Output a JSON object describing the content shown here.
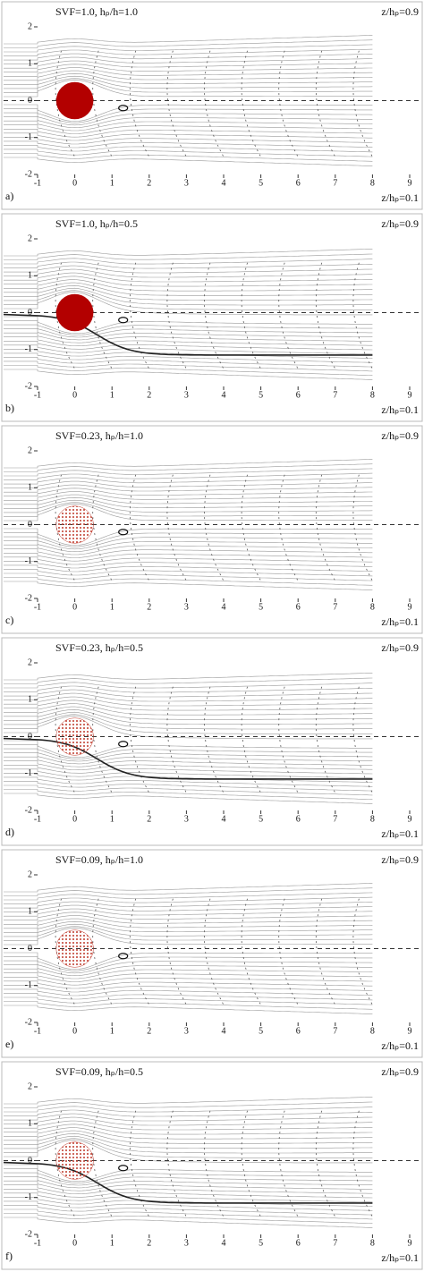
{
  "chart_data": [
    {
      "type": "streamline",
      "panel": "a)",
      "title": "SVF=1.0, hₚ/h=1.0",
      "top_label": "z/hₚ=0.9",
      "bottom_label": "z/hₚ=0.1",
      "xlim": [
        -1,
        9
      ],
      "ylim": [
        -2,
        2
      ],
      "xticks": [
        -1,
        0,
        1,
        2,
        3,
        4,
        5,
        6,
        7,
        8,
        9
      ],
      "yticks": [
        -2,
        -1,
        0,
        1,
        2
      ],
      "patch_fill": "solid",
      "patch_color": "#b30000"
    },
    {
      "type": "streamline",
      "panel": "b)",
      "title": "SVF=1.0, hₚ/h=0.5",
      "top_label": "z/hₚ=0.9",
      "bottom_label": "z/hₚ=0.1",
      "xlim": [
        -1,
        9
      ],
      "ylim": [
        -2,
        2
      ],
      "xticks": [
        -1,
        0,
        1,
        2,
        3,
        4,
        5,
        6,
        7,
        8,
        9
      ],
      "yticks": [
        -2,
        -1,
        0,
        1,
        2
      ],
      "patch_fill": "solid",
      "patch_color": "#b30000"
    },
    {
      "type": "streamline",
      "panel": "c)",
      "title": "SVF=0.23, hₚ/h=1.0",
      "top_label": "z/hₚ=0.9",
      "bottom_label": "z/hₚ=0.1",
      "xlim": [
        -1,
        9
      ],
      "ylim": [
        -2,
        2
      ],
      "xticks": [
        -1,
        0,
        1,
        2,
        3,
        4,
        5,
        6,
        7,
        8,
        9
      ],
      "yticks": [
        -2,
        -1,
        0,
        1,
        2
      ],
      "patch_fill": "dotted",
      "patch_color": "#c0392b"
    },
    {
      "type": "streamline",
      "panel": "d)",
      "title": "SVF=0.23, hₚ/h=0.5",
      "top_label": "z/hₚ=0.9",
      "bottom_label": "z/hₚ=0.1",
      "xlim": [
        -1,
        9
      ],
      "ylim": [
        -2,
        2
      ],
      "xticks": [
        -1,
        0,
        1,
        2,
        3,
        4,
        5,
        6,
        7,
        8,
        9
      ],
      "yticks": [
        -2,
        -1,
        0,
        1,
        2
      ],
      "patch_fill": "dotted",
      "patch_color": "#c0392b"
    },
    {
      "type": "streamline",
      "panel": "e)",
      "title": "SVF=0.09, hₚ/h=1.0",
      "top_label": "z/hₚ=0.9",
      "bottom_label": "z/hₚ=0.1",
      "xlim": [
        -1,
        9
      ],
      "ylim": [
        -2,
        2
      ],
      "xticks": [
        -1,
        0,
        1,
        2,
        3,
        4,
        5,
        6,
        7,
        8,
        9
      ],
      "yticks": [
        -2,
        -1,
        0,
        1,
        2
      ],
      "patch_fill": "dotted",
      "patch_color": "#c0392b"
    },
    {
      "type": "streamline",
      "panel": "f)",
      "title": "SVF=0.09, hₚ/h=0.5",
      "top_label": "z/hₚ=0.9",
      "bottom_label": "z/hₚ=0.1",
      "xlim": [
        -1,
        9
      ],
      "ylim": [
        -2,
        2
      ],
      "xticks": [
        -1,
        0,
        1,
        2,
        3,
        4,
        5,
        6,
        7,
        8,
        9
      ],
      "yticks": [
        -2,
        -1,
        0,
        1,
        2
      ],
      "patch_fill": "dotted",
      "patch_color": "#c0392b"
    }
  ]
}
